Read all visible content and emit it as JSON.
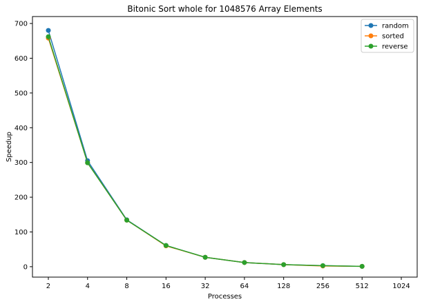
{
  "chart_data": {
    "type": "line",
    "title": "Bitonic Sort whole for 1048576 Array Elements",
    "xlabel": "Processes",
    "ylabel": "Speedup",
    "x_scale": "log2",
    "x_ticks": [
      "2",
      "4",
      "8",
      "16",
      "32",
      "64",
      "128",
      "256",
      "512",
      "1024"
    ],
    "xlim": [
      2,
      1024
    ],
    "ylim": [
      -30,
      720
    ],
    "y_ticks": [
      "0",
      "100",
      "200",
      "300",
      "400",
      "500",
      "600",
      "700"
    ],
    "grid": false,
    "legend_position": "top-right",
    "x": [
      2,
      4,
      8,
      16,
      32,
      64,
      128,
      256,
      512
    ],
    "series": [
      {
        "name": "random",
        "color": "#1f77b4",
        "values": [
          680,
          305,
          135,
          61,
          27,
          12,
          6,
          3,
          1
        ]
      },
      {
        "name": "sorted",
        "color": "#ff7f0e",
        "values": [
          658,
          299,
          134,
          60,
          27,
          12,
          6,
          2,
          1
        ]
      },
      {
        "name": "reverse",
        "color": "#2ca02c",
        "values": [
          662,
          299,
          134,
          61,
          27,
          12,
          6,
          3,
          1
        ]
      }
    ]
  }
}
